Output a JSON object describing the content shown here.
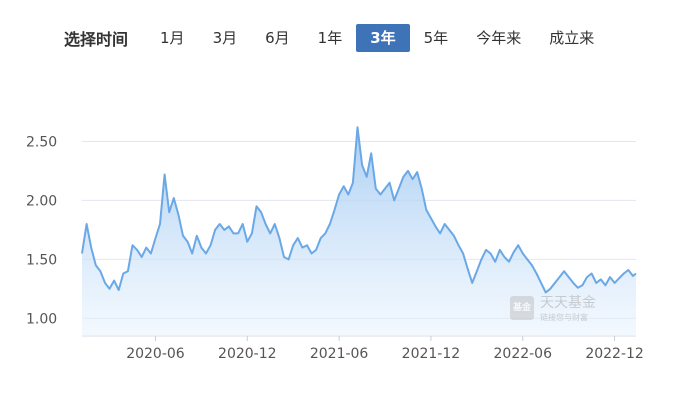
{
  "selector": {
    "label": "选择时间",
    "tabs": [
      "1月",
      "3月",
      "6月",
      "1年",
      "3年",
      "5年",
      "今年来",
      "成立来"
    ],
    "active": "3年",
    "active_color": "#3f73b8"
  },
  "watermark": {
    "logo_text": "基金",
    "title": "天天基金",
    "subtitle": "链接您与财富"
  },
  "chart_data": {
    "type": "area",
    "title": "",
    "xlabel": "",
    "ylabel": "",
    "ylim": [
      0.85,
      2.75
    ],
    "yticks": [
      1.0,
      1.5,
      2.0,
      2.5
    ],
    "ytick_labels": [
      "1.00",
      "1.50",
      "2.00",
      "2.50"
    ],
    "xtick_labels": [
      "2020-06",
      "2020-12",
      "2021-06",
      "2021-12",
      "2022-06",
      "2022-12"
    ],
    "xtick_pos": [
      5,
      11,
      17,
      23,
      29,
      35
    ],
    "xlim": [
      0.2,
      36.4
    ],
    "grid": true,
    "line_color": "#6aa8e6",
    "fill_color": "#a9cdf3",
    "series": [
      {
        "points": [
          [
            0.2,
            1.55
          ],
          [
            0.5,
            1.8
          ],
          [
            0.8,
            1.6
          ],
          [
            1.1,
            1.45
          ],
          [
            1.4,
            1.4
          ],
          [
            1.7,
            1.3
          ],
          [
            2.0,
            1.25
          ],
          [
            2.3,
            1.32
          ],
          [
            2.6,
            1.24
          ],
          [
            2.9,
            1.38
          ],
          [
            3.2,
            1.4
          ],
          [
            3.5,
            1.62
          ],
          [
            3.8,
            1.58
          ],
          [
            4.1,
            1.52
          ],
          [
            4.4,
            1.6
          ],
          [
            4.7,
            1.55
          ],
          [
            5.0,
            1.68
          ],
          [
            5.3,
            1.8
          ],
          [
            5.6,
            2.22
          ],
          [
            5.9,
            1.9
          ],
          [
            6.2,
            2.02
          ],
          [
            6.5,
            1.88
          ],
          [
            6.8,
            1.7
          ],
          [
            7.1,
            1.65
          ],
          [
            7.4,
            1.55
          ],
          [
            7.7,
            1.7
          ],
          [
            8.0,
            1.6
          ],
          [
            8.3,
            1.55
          ],
          [
            8.6,
            1.62
          ],
          [
            8.9,
            1.75
          ],
          [
            9.2,
            1.8
          ],
          [
            9.5,
            1.75
          ],
          [
            9.8,
            1.78
          ],
          [
            10.1,
            1.72
          ],
          [
            10.4,
            1.72
          ],
          [
            10.7,
            1.8
          ],
          [
            11.0,
            1.65
          ],
          [
            11.3,
            1.72
          ],
          [
            11.6,
            1.95
          ],
          [
            11.9,
            1.9
          ],
          [
            12.2,
            1.8
          ],
          [
            12.5,
            1.72
          ],
          [
            12.8,
            1.8
          ],
          [
            13.1,
            1.68
          ],
          [
            13.4,
            1.52
          ],
          [
            13.7,
            1.5
          ],
          [
            14.0,
            1.62
          ],
          [
            14.3,
            1.68
          ],
          [
            14.6,
            1.6
          ],
          [
            14.9,
            1.62
          ],
          [
            15.2,
            1.55
          ],
          [
            15.5,
            1.58
          ],
          [
            15.8,
            1.68
          ],
          [
            16.1,
            1.72
          ],
          [
            16.4,
            1.8
          ],
          [
            16.7,
            1.92
          ],
          [
            17.0,
            2.05
          ],
          [
            17.3,
            2.12
          ],
          [
            17.6,
            2.05
          ],
          [
            17.9,
            2.15
          ],
          [
            18.2,
            2.62
          ],
          [
            18.5,
            2.3
          ],
          [
            18.8,
            2.2
          ],
          [
            19.1,
            2.4
          ],
          [
            19.4,
            2.1
          ],
          [
            19.7,
            2.05
          ],
          [
            20.0,
            2.1
          ],
          [
            20.3,
            2.15
          ],
          [
            20.6,
            2.0
          ],
          [
            20.9,
            2.1
          ],
          [
            21.2,
            2.2
          ],
          [
            21.5,
            2.25
          ],
          [
            21.8,
            2.18
          ],
          [
            22.1,
            2.24
          ],
          [
            22.4,
            2.1
          ],
          [
            22.7,
            1.92
          ],
          [
            23.0,
            1.85
          ],
          [
            23.3,
            1.78
          ],
          [
            23.6,
            1.72
          ],
          [
            23.9,
            1.8
          ],
          [
            24.2,
            1.75
          ],
          [
            24.5,
            1.7
          ],
          [
            24.8,
            1.62
          ],
          [
            25.1,
            1.55
          ],
          [
            25.4,
            1.42
          ],
          [
            25.7,
            1.3
          ],
          [
            26.0,
            1.4
          ],
          [
            26.3,
            1.5
          ],
          [
            26.6,
            1.58
          ],
          [
            26.9,
            1.55
          ],
          [
            27.2,
            1.48
          ],
          [
            27.5,
            1.58
          ],
          [
            27.8,
            1.52
          ],
          [
            28.1,
            1.48
          ],
          [
            28.4,
            1.56
          ],
          [
            28.7,
            1.62
          ],
          [
            29.0,
            1.55
          ],
          [
            29.3,
            1.5
          ],
          [
            29.6,
            1.45
          ],
          [
            29.9,
            1.38
          ],
          [
            30.2,
            1.3
          ],
          [
            30.5,
            1.22
          ],
          [
            30.8,
            1.25
          ],
          [
            31.1,
            1.3
          ],
          [
            31.4,
            1.35
          ],
          [
            31.7,
            1.4
          ],
          [
            32.0,
            1.35
          ],
          [
            32.3,
            1.3
          ],
          [
            32.6,
            1.26
          ],
          [
            32.9,
            1.28
          ],
          [
            33.2,
            1.35
          ],
          [
            33.5,
            1.38
          ],
          [
            33.8,
            1.3
          ],
          [
            34.1,
            1.33
          ],
          [
            34.4,
            1.28
          ],
          [
            34.7,
            1.35
          ],
          [
            35.0,
            1.3
          ],
          [
            35.3,
            1.34
          ],
          [
            35.6,
            1.38
          ],
          [
            35.9,
            1.41
          ],
          [
            36.2,
            1.36
          ],
          [
            36.4,
            1.38
          ]
        ]
      }
    ]
  }
}
